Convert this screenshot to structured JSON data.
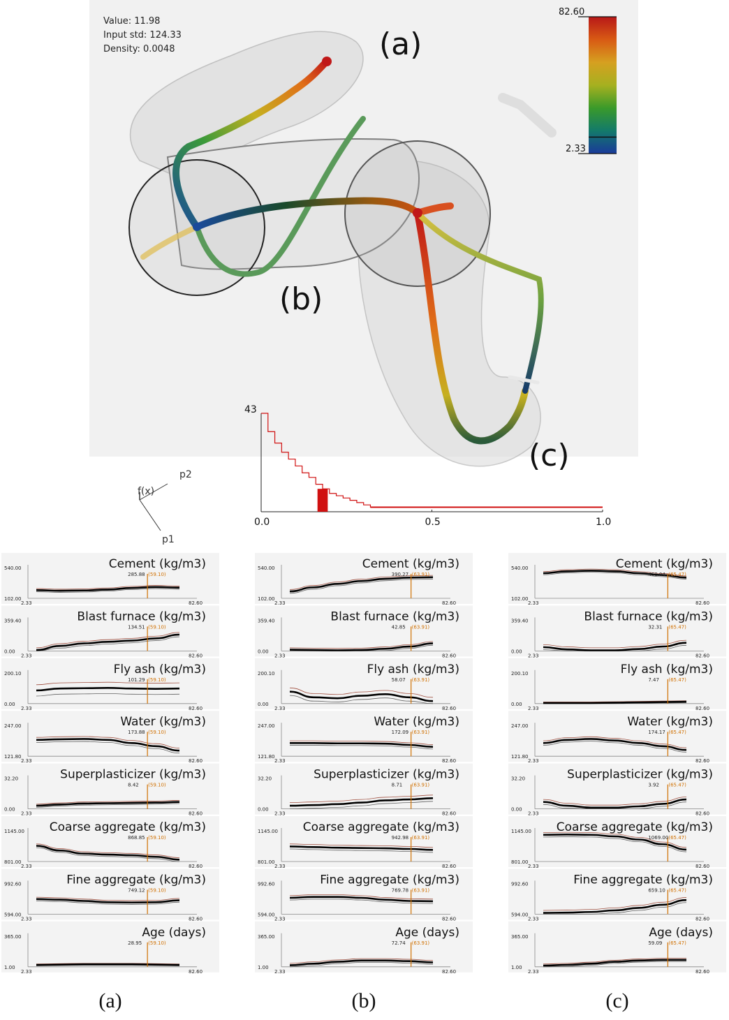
{
  "stats": {
    "value": "Value: 11.98",
    "input_std": "Input std: 124.33",
    "density": "Density: 0.0048"
  },
  "view_labels": {
    "a": "(a)",
    "b": "(b)",
    "c": "(c)"
  },
  "colorbar": {
    "max": "82.60",
    "min": "2.33",
    "marker_value": 11.98,
    "colors": [
      "#1a3a9a",
      "#137a6a",
      "#3a9a2a",
      "#a6b020",
      "#d6a020",
      "#d85a14",
      "#b81818"
    ]
  },
  "coords": {
    "f": "f(x)",
    "p1": "p1",
    "p2": "p2"
  },
  "chart_data": [
    {
      "type": "line",
      "title": "",
      "x_ticks": [
        "0.0",
        "0.5",
        "1.0"
      ],
      "y_max_label": "43",
      "xlim": [
        0,
        1
      ],
      "ylim": [
        0,
        43
      ],
      "x": [
        0.0,
        0.02,
        0.04,
        0.06,
        0.08,
        0.1,
        0.12,
        0.14,
        0.16,
        0.18,
        0.2,
        0.22,
        0.24,
        0.26,
        0.28,
        0.3,
        0.32,
        1.0
      ],
      "y": [
        43,
        35,
        30,
        26,
        23,
        20,
        17,
        15,
        12,
        10,
        8,
        7,
        6,
        5,
        4,
        3,
        2,
        2
      ],
      "highlight": {
        "x0": 0.165,
        "x1": 0.195,
        "y": 10
      },
      "color": "#d01010"
    },
    {
      "type": "line",
      "x_range": [
        "2.33",
        "82.60"
      ],
      "columns": [
        {
          "caption": "(a)",
          "highlight_x": 59.1,
          "highlight_label": "(59.10)",
          "panels": [
            {
              "title": "Cement (kg/m3)",
              "ymin": "102.00",
              "ymax": "540.00",
              "value": "285.88",
              "y": [
                0.26,
                0.24,
                0.25,
                0.28,
                0.33,
                0.36,
                0.34
              ],
              "band": 0.05
            },
            {
              "title": "Blast furnace (kg/m3)",
              "ymin": "0.00",
              "ymax": "359.40",
              "value": "134.51",
              "y": [
                0.03,
                0.16,
                0.24,
                0.29,
                0.33,
                0.4,
                0.52
              ],
              "band": 0.07
            },
            {
              "title": "Fly ash (kg/m3)",
              "ymin": "0.00",
              "ymax": "200.10",
              "value": "101.29",
              "y": [
                0.42,
                0.48,
                0.49,
                0.5,
                0.48,
                0.47,
                0.48
              ],
              "band": 0.18
            },
            {
              "title": "Water (kg/m3)",
              "ymin": "121.80",
              "ymax": "247.00",
              "value": "173.88",
              "y": [
                0.52,
                0.54,
                0.55,
                0.52,
                0.42,
                0.32,
                0.18
              ],
              "band": 0.08
            },
            {
              "title": "Superplasticizer (kg/m3)",
              "ymin": "0.00",
              "ymax": "32.20",
              "value": "8.42",
              "y": [
                0.1,
                0.14,
                0.17,
                0.18,
                0.19,
                0.2,
                0.22
              ],
              "band": 0.05
            },
            {
              "title": "Coarse aggregate (kg/m3)",
              "ymin": "801.00",
              "ymax": "1145.00",
              "value": "868.85",
              "y": [
                0.5,
                0.35,
                0.25,
                0.22,
                0.2,
                0.15,
                0.06
              ],
              "band": 0.06
            },
            {
              "title": "Fine aggregate (kg/m3)",
              "ymin": "594.00",
              "ymax": "992.60",
              "value": "749.12",
              "y": [
                0.48,
                0.46,
                0.42,
                0.38,
                0.37,
                0.38,
                0.44
              ],
              "band": 0.06
            },
            {
              "title": "Age (days)",
              "ymin": "1.00",
              "ymax": "365.00",
              "value": "28.95",
              "y": [
                0.06,
                0.07,
                0.08,
                0.08,
                0.08,
                0.07,
                0.06
              ],
              "band": 0.03
            }
          ]
        },
        {
          "caption": "(b)",
          "highlight_x": 63.91,
          "highlight_label": "(63.91)",
          "panels": [
            {
              "title": "Cement (kg/m3)",
              "ymin": "102.00",
              "ymax": "540.00",
              "value": "390.27",
              "y": [
                0.22,
                0.35,
                0.46,
                0.55,
                0.62,
                0.66,
                0.67
              ],
              "band": 0.06
            },
            {
              "title": "Blast furnace (kg/m3)",
              "ymin": "0.00",
              "ymax": "359.40",
              "value": "42.85",
              "y": [
                0.04,
                0.03,
                0.02,
                0.03,
                0.07,
                0.14,
                0.24
              ],
              "band": 0.06
            },
            {
              "title": "Fly ash (kg/m3)",
              "ymin": "0.00",
              "ymax": "200.10",
              "value": "58.07",
              "y": [
                0.38,
                0.2,
                0.17,
                0.25,
                0.3,
                0.2,
                0.08
              ],
              "band": 0.12
            },
            {
              "title": "Water (kg/m3)",
              "ymin": "121.80",
              "ymax": "247.00",
              "value": "172.09",
              "y": [
                0.42,
                0.42,
                0.41,
                0.41,
                0.4,
                0.36,
                0.3
              ],
              "band": 0.07
            },
            {
              "title": "Superplasticizer (kg/m3)",
              "ymin": "0.00",
              "ymax": "32.20",
              "value": "8.71",
              "y": [
                0.1,
                0.12,
                0.15,
                0.2,
                0.27,
                0.3,
                0.34
              ],
              "band": 0.1
            },
            {
              "title": "Coarse aggregate (kg/m3)",
              "ymin": "801.00",
              "ymax": "1145.00",
              "value": "942.98",
              "y": [
                0.48,
                0.46,
                0.44,
                0.43,
                0.42,
                0.4,
                0.37
              ],
              "band": 0.08
            },
            {
              "title": "Fine aggregate (kg/m3)",
              "ymin": "594.00",
              "ymax": "992.60",
              "value": "769.78",
              "y": [
                0.52,
                0.55,
                0.55,
                0.52,
                0.46,
                0.42,
                0.41
              ],
              "band": 0.07
            },
            {
              "title": "Age (days)",
              "ymin": "1.00",
              "ymax": "365.00",
              "value": "72.74",
              "y": [
                0.05,
                0.1,
                0.16,
                0.2,
                0.2,
                0.18,
                0.14
              ],
              "band": 0.06
            }
          ]
        },
        {
          "caption": "(c)",
          "highlight_x": 65.47,
          "highlight_label": "(65.47)",
          "panels": [
            {
              "title": "Cement (kg/m3)",
              "ymin": "102.00",
              "ymax": "540.00",
              "value": "450.04",
              "y": [
                0.8,
                0.86,
                0.88,
                0.86,
                0.8,
                0.74,
                0.66
              ],
              "band": 0.05
            },
            {
              "title": "Blast furnace (kg/m3)",
              "ymin": "0.00",
              "ymax": "359.40",
              "value": "32.31",
              "y": [
                0.12,
                0.05,
                0.02,
                0.02,
                0.06,
                0.14,
                0.26
              ],
              "band": 0.08
            },
            {
              "title": "Fly ash (kg/m3)",
              "ymin": "0.00",
              "ymax": "200.10",
              "value": "7.47",
              "y": [
                0.02,
                0.02,
                0.02,
                0.03,
                0.04,
                0.05,
                0.06
              ],
              "band": 0.03
            },
            {
              "title": "Water (kg/m3)",
              "ymin": "121.80",
              "ymax": "247.00",
              "value": "174.17",
              "y": [
                0.42,
                0.52,
                0.55,
                0.5,
                0.42,
                0.32,
                0.2
              ],
              "band": 0.07
            },
            {
              "title": "Superplasticizer (kg/m3)",
              "ymin": "0.00",
              "ymax": "32.20",
              "value": "3.92",
              "y": [
                0.22,
                0.1,
                0.04,
                0.04,
                0.08,
                0.16,
                0.3
              ],
              "band": 0.08
            },
            {
              "title": "Coarse aggregate (kg/m3)",
              "ymin": "801.00",
              "ymax": "1145.00",
              "value": "1069.00",
              "y": [
                0.85,
                0.86,
                0.85,
                0.8,
                0.7,
                0.55,
                0.38
              ],
              "band": 0.07
            },
            {
              "title": "Fine aggregate (kg/m3)",
              "ymin": "594.00",
              "ymax": "992.60",
              "value": "659.10",
              "y": [
                0.04,
                0.05,
                0.07,
                0.12,
                0.2,
                0.3,
                0.45
              ],
              "band": 0.08
            },
            {
              "title": "Age (days)",
              "ymin": "1.00",
              "ymax": "365.00",
              "value": "59.09",
              "y": [
                0.04,
                0.06,
                0.1,
                0.16,
                0.2,
                0.22,
                0.22
              ],
              "band": 0.05
            }
          ]
        }
      ]
    }
  ]
}
